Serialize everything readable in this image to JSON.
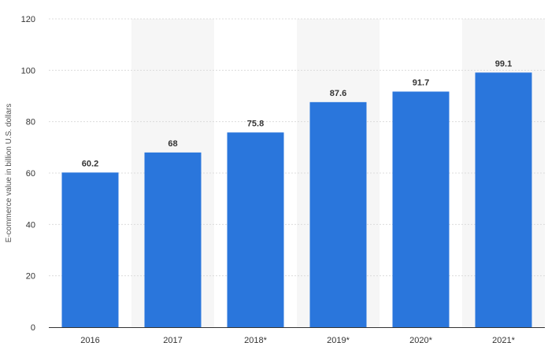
{
  "chart_data": {
    "type": "bar",
    "title": "",
    "xlabel": "",
    "ylabel": "E-commerce value in billion U.S. dollars",
    "categories": [
      "2016",
      "2017",
      "2018*",
      "2019*",
      "2020*",
      "2021*"
    ],
    "values": [
      60.2,
      68,
      75.8,
      87.6,
      91.7,
      99.1
    ],
    "value_labels": [
      "60.2",
      "68",
      "75.8",
      "87.6",
      "91.7",
      "99.1"
    ],
    "ylim": [
      0,
      120
    ],
    "yticks": [
      "0",
      "20",
      "40",
      "60",
      "80",
      "100",
      "120"
    ],
    "ytick_values": [
      0,
      20,
      40,
      60,
      80,
      100,
      120
    ],
    "grid": true,
    "legend": "none",
    "colors": {
      "bar": "#2a76dc",
      "band": "#f6f6f6",
      "grid": "#dcdcdc",
      "axis": "#333333"
    }
  }
}
